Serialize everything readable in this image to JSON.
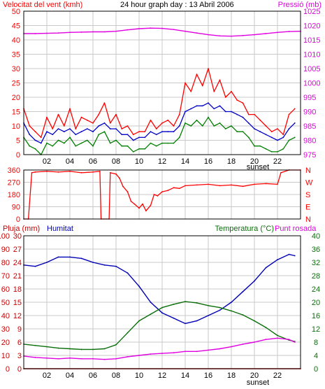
{
  "title": "24 hour graph day : 13 Abril 2006",
  "colors": {
    "wind": "#ff0000",
    "gust_green": "#007f00",
    "wind_avg_blue": "#0000c8",
    "pressure": "#e000e0",
    "temperature": "#0a6e0a",
    "dewpoint": "#e000e0",
    "humidity": "#0000b4",
    "rain": "#c80000",
    "frame": "#000000",
    "grid": "#c8c8c8"
  },
  "x_ticks": [
    "02",
    "04",
    "06",
    "08",
    "10",
    "12",
    "14",
    "16",
    "18",
    "20",
    "22"
  ],
  "sunset_label": "sunset",
  "chart_data": [
    {
      "type": "line",
      "name": "wind-pressure",
      "title": "24 hour graph day : 13 Abril 2006",
      "ylabel_left": "Velocitat del vent (kmh)",
      "ylabel_right": "Pressió (mb)",
      "x_unit": "hour",
      "xlim": [
        0,
        24
      ],
      "ylim_left": [
        0,
        50
      ],
      "ylim_right": [
        975,
        1025
      ],
      "yticks_left": [
        0,
        5,
        10,
        15,
        20,
        25,
        30,
        35,
        40,
        45,
        50
      ],
      "yticks_right": [
        975,
        980,
        985,
        990,
        995,
        1000,
        1005,
        1010,
        1015,
        1020,
        1025
      ],
      "series": [
        {
          "name": "wind gust",
          "axis": "left",
          "color_key": "wind",
          "x": [
            0,
            0.5,
            1,
            1.5,
            2,
            2.5,
            3,
            3.5,
            4,
            4.5,
            5,
            5.5,
            6,
            6.5,
            7,
            7.5,
            8,
            8.5,
            9,
            9.5,
            10,
            10.5,
            11,
            11.5,
            12,
            12.5,
            13,
            13.5,
            14,
            14.5,
            15,
            15.5,
            16,
            16.5,
            17,
            17.5,
            18,
            18.5,
            19,
            19.5,
            20,
            20.5,
            21,
            21.5,
            22,
            22.5,
            23,
            23.5
          ],
          "values": [
            16,
            10,
            8,
            6,
            13,
            9,
            14,
            10,
            16,
            9,
            13,
            12,
            11,
            14,
            18,
            11,
            14,
            9,
            10,
            7,
            8,
            8,
            12,
            9,
            11,
            12,
            10,
            14,
            25,
            22,
            28,
            24,
            30,
            22,
            26,
            20,
            22,
            19,
            18,
            14,
            14,
            12,
            10,
            8,
            9,
            7,
            14,
            16
          ]
        },
        {
          "name": "wind average",
          "axis": "left",
          "color_key": "wind_avg_blue",
          "x": [
            0,
            0.5,
            1,
            1.5,
            2,
            2.5,
            3,
            3.5,
            4,
            4.5,
            5,
            5.5,
            6,
            6.5,
            7,
            7.5,
            8,
            8.5,
            9,
            9.5,
            10,
            10.5,
            11,
            11.5,
            12,
            12.5,
            13,
            13.5,
            14,
            14.5,
            15,
            15.5,
            16,
            16.5,
            17,
            17.5,
            18,
            18.5,
            19,
            19.5,
            20,
            20.5,
            21,
            21.5,
            22,
            22.5,
            23,
            23.5
          ],
          "values": [
            11,
            7,
            5,
            4,
            8,
            7,
            9,
            8,
            9,
            7,
            8,
            9,
            8,
            10,
            11,
            9,
            9,
            7,
            7,
            5,
            6,
            6,
            8,
            7,
            8,
            8,
            8,
            10,
            15,
            16,
            17,
            17,
            18,
            16,
            17,
            15,
            15,
            14,
            13,
            11,
            9,
            8,
            7,
            6,
            5,
            6,
            9,
            11
          ]
        },
        {
          "name": "wind min",
          "axis": "left",
          "color_key": "gust_green",
          "x": [
            0,
            0.5,
            1,
            1.5,
            2,
            2.5,
            3,
            3.5,
            4,
            4.5,
            5,
            5.5,
            6,
            6.5,
            7,
            7.5,
            8,
            8.5,
            9,
            9.5,
            10,
            10.5,
            11,
            11.5,
            12,
            12.5,
            13,
            13.5,
            14,
            14.5,
            15,
            15.5,
            16,
            16.5,
            17,
            17.5,
            18,
            18.5,
            19,
            19.5,
            20,
            20.5,
            21,
            21.5,
            22,
            22.5,
            23,
            23.5
          ],
          "values": [
            6,
            3,
            2,
            0,
            4,
            3,
            5,
            4,
            6,
            3,
            4,
            5,
            3,
            7,
            8,
            4,
            5,
            3,
            3,
            1,
            2,
            2,
            4,
            3,
            4,
            4,
            4,
            6,
            11,
            10,
            12,
            10,
            13,
            10,
            11,
            9,
            10,
            8,
            8,
            6,
            3,
            3,
            2,
            1,
            1,
            2,
            5,
            6
          ]
        },
        {
          "name": "pressure",
          "axis": "right",
          "color_key": "pressure",
          "x": [
            0,
            1,
            2,
            3,
            4,
            5,
            6,
            7,
            8,
            9,
            10,
            11,
            12,
            13,
            14,
            15,
            16,
            17,
            18,
            19,
            20,
            21,
            22,
            23,
            24
          ],
          "values": [
            1017.2,
            1017.2,
            1017.3,
            1017.4,
            1017.6,
            1017.7,
            1017.8,
            1017.8,
            1018.0,
            1018.5,
            1018.9,
            1019.1,
            1019.0,
            1018.6,
            1018.0,
            1017.4,
            1016.8,
            1016.4,
            1016.3,
            1016.5,
            1016.8,
            1017.2,
            1017.6,
            1017.9,
            1018.0
          ]
        }
      ]
    },
    {
      "type": "line",
      "name": "wind-direction",
      "ylabel_right": "N W S E N",
      "direction_labels": [
        "N",
        "W",
        "S",
        "E",
        "N"
      ],
      "xlim": [
        0,
        24
      ],
      "ylim": [
        0,
        360
      ],
      "yticks": [
        0,
        90,
        180,
        270,
        360
      ],
      "series": [
        {
          "name": "direction",
          "color_key": "wind",
          "x": [
            0,
            0.4,
            0.7,
            1,
            2,
            3,
            4,
            5,
            6,
            6.6,
            6.7,
            7.4,
            7.5,
            8,
            8.3,
            8.6,
            9,
            9.3,
            9.6,
            10,
            10.3,
            10.6,
            11,
            11.3,
            11.6,
            12,
            12.5,
            13,
            13.5,
            14,
            15,
            16,
            17,
            18,
            19,
            20,
            21,
            22,
            22.3,
            23,
            24
          ],
          "values": [
            0,
            0,
            340,
            345,
            350,
            345,
            350,
            340,
            345,
            350,
            0,
            0,
            340,
            330,
            300,
            240,
            200,
            130,
            110,
            80,
            110,
            60,
            100,
            180,
            170,
            200,
            210,
            230,
            225,
            245,
            250,
            255,
            245,
            250,
            240,
            255,
            260,
            255,
            340,
            360,
            360
          ]
        }
      ]
    },
    {
      "type": "line",
      "name": "rain-humidity-temperature",
      "ylabel_left_1": "Pluja (mm)",
      "ylabel_left_2": "Humitat",
      "ylabel_right_1": "Temperatura (°C)",
      "ylabel_right_2": "Punt rosada",
      "xlim": [
        0,
        24
      ],
      "ylim_rain": [
        0,
        30
      ],
      "ylim_humidity": [
        0,
        100
      ],
      "ylim_temp": [
        0,
        40
      ],
      "yticks_rain": [
        0,
        3,
        6,
        9,
        12,
        15,
        18,
        21,
        24,
        27,
        30
      ],
      "yticks_humidity": [
        0,
        10,
        20,
        30,
        40,
        50,
        60,
        70,
        80,
        90,
        100
      ],
      "yticks_temp": [
        0,
        4,
        8,
        12,
        16,
        20,
        24,
        28,
        32,
        36,
        40
      ],
      "series": [
        {
          "name": "humidity",
          "axis": "humidity",
          "color_key": "humidity",
          "x": [
            0,
            1,
            2,
            3,
            4,
            5,
            6,
            7,
            8,
            9,
            10,
            11,
            12,
            13,
            14,
            15,
            16,
            17,
            18,
            19,
            20,
            21,
            22,
            23,
            23.5
          ],
          "values": [
            78,
            77,
            80,
            84,
            84,
            83,
            80,
            78,
            77,
            72,
            62,
            50,
            42,
            38,
            34,
            36,
            40,
            44,
            50,
            58,
            66,
            76,
            82,
            86,
            85
          ]
        },
        {
          "name": "temperature",
          "axis": "temp",
          "color_key": "temperature",
          "x": [
            0,
            1,
            2,
            3,
            4,
            5,
            6,
            7,
            8,
            9,
            10,
            11,
            12,
            13,
            14,
            15,
            16,
            17,
            18,
            19,
            20,
            21,
            22,
            23,
            23.5
          ],
          "values": [
            7.4,
            7.0,
            6.6,
            6.2,
            6.0,
            5.8,
            5.8,
            6.0,
            7.2,
            10.8,
            14.4,
            16.4,
            18.4,
            19.4,
            20.2,
            19.8,
            19.0,
            18.4,
            17.4,
            16.2,
            14.4,
            12.4,
            10.0,
            8.6,
            8.2
          ]
        },
        {
          "name": "dewpoint",
          "axis": "temp",
          "color_key": "dewpoint",
          "x": [
            0,
            1,
            2,
            3,
            4,
            5,
            6,
            7,
            8,
            9,
            10,
            11,
            12,
            13,
            14,
            15,
            16,
            17,
            18,
            19,
            20,
            21,
            22,
            23,
            23.5
          ],
          "values": [
            3.8,
            3.4,
            3.2,
            3.0,
            3.2,
            3.0,
            3.0,
            2.8,
            3.0,
            3.6,
            4.0,
            4.4,
            4.6,
            4.8,
            5.2,
            5.2,
            5.6,
            6.0,
            6.6,
            7.4,
            8.0,
            8.8,
            9.2,
            8.8,
            8.0
          ]
        },
        {
          "name": "rain",
          "axis": "rain",
          "color_key": "rain",
          "x": [
            0,
            24
          ],
          "values": [
            0,
            0
          ]
        }
      ]
    }
  ]
}
